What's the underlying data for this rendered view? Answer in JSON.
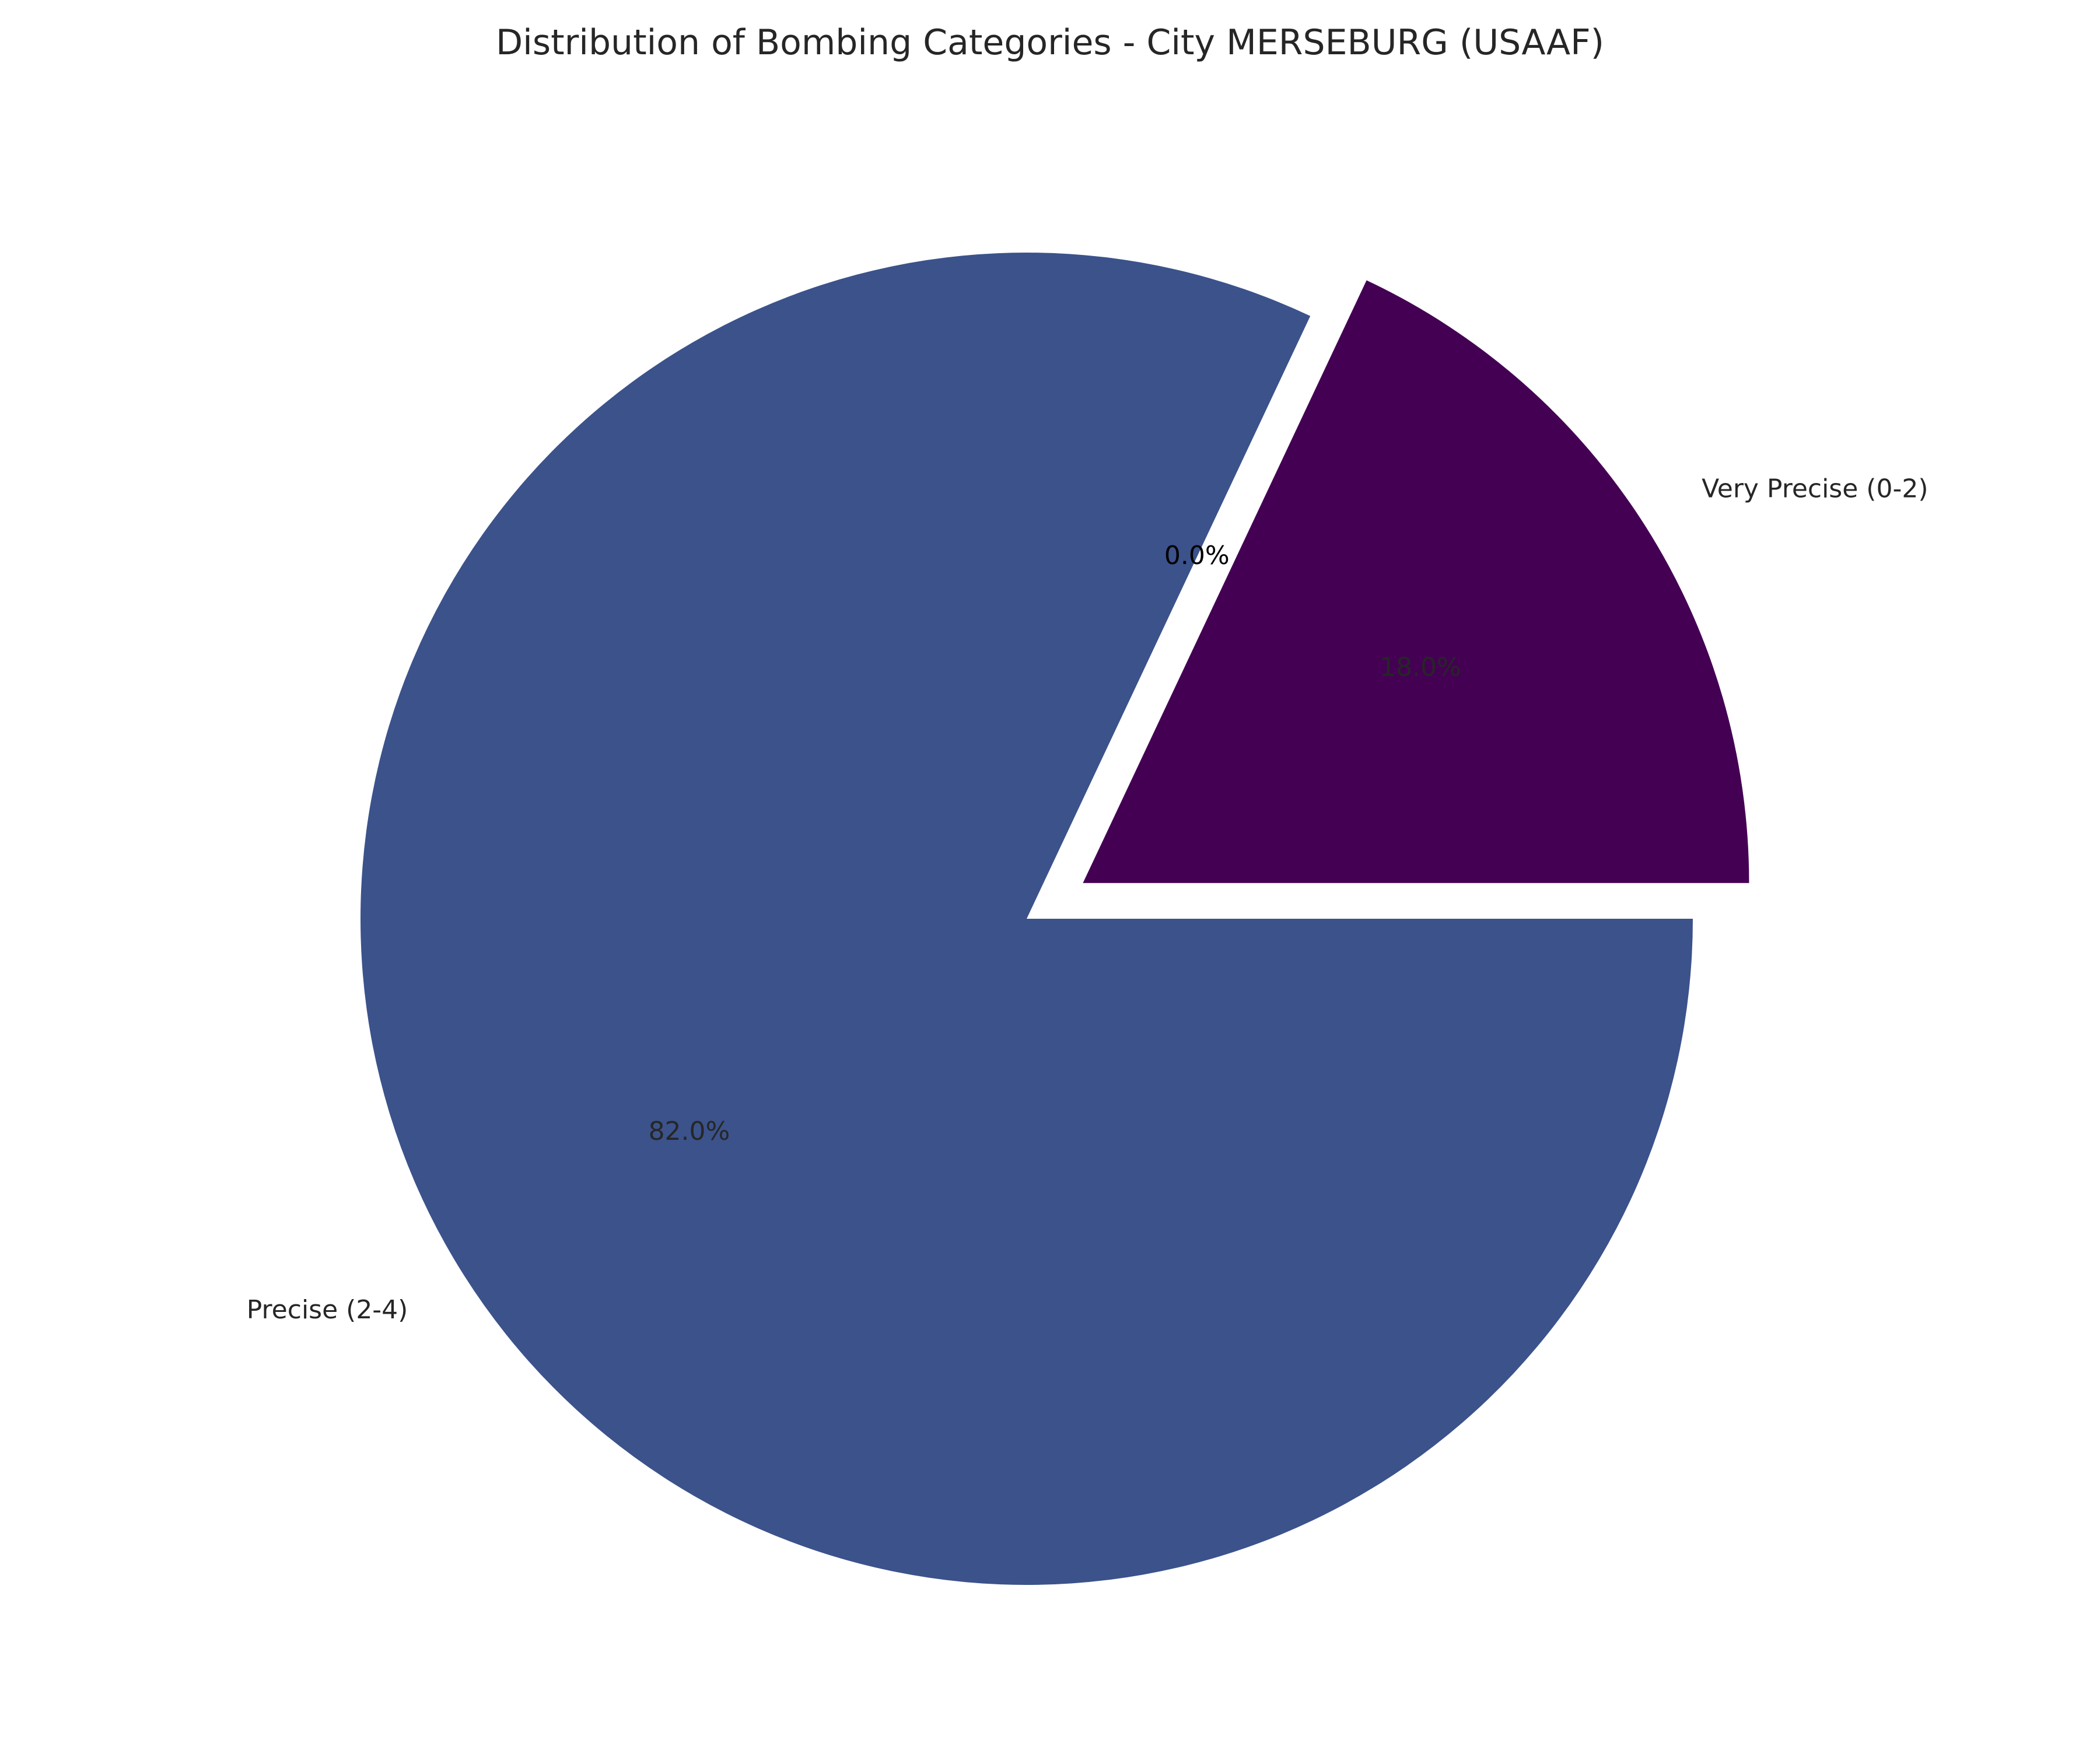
{
  "chart_data": {
    "type": "pie",
    "title": "Distribution of Bombing Categories - City MERSEBURG (USAAF)",
    "slices": [
      {
        "label": "Very Precise (0-2)",
        "value": 18.0,
        "pct_label": "18.0%",
        "color": "#440154",
        "exploded": true
      },
      {
        "label": "",
        "value": 0.0,
        "pct_label": "0.0%",
        "color": "#3b528b",
        "exploded": false
      },
      {
        "label": "Precise (2-4)",
        "value": 82.0,
        "pct_label": "82.0%",
        "color": "#3b528b",
        "exploded": false
      }
    ],
    "start_angle_deg": 0,
    "direction": "counterclockwise",
    "legend": "none"
  }
}
